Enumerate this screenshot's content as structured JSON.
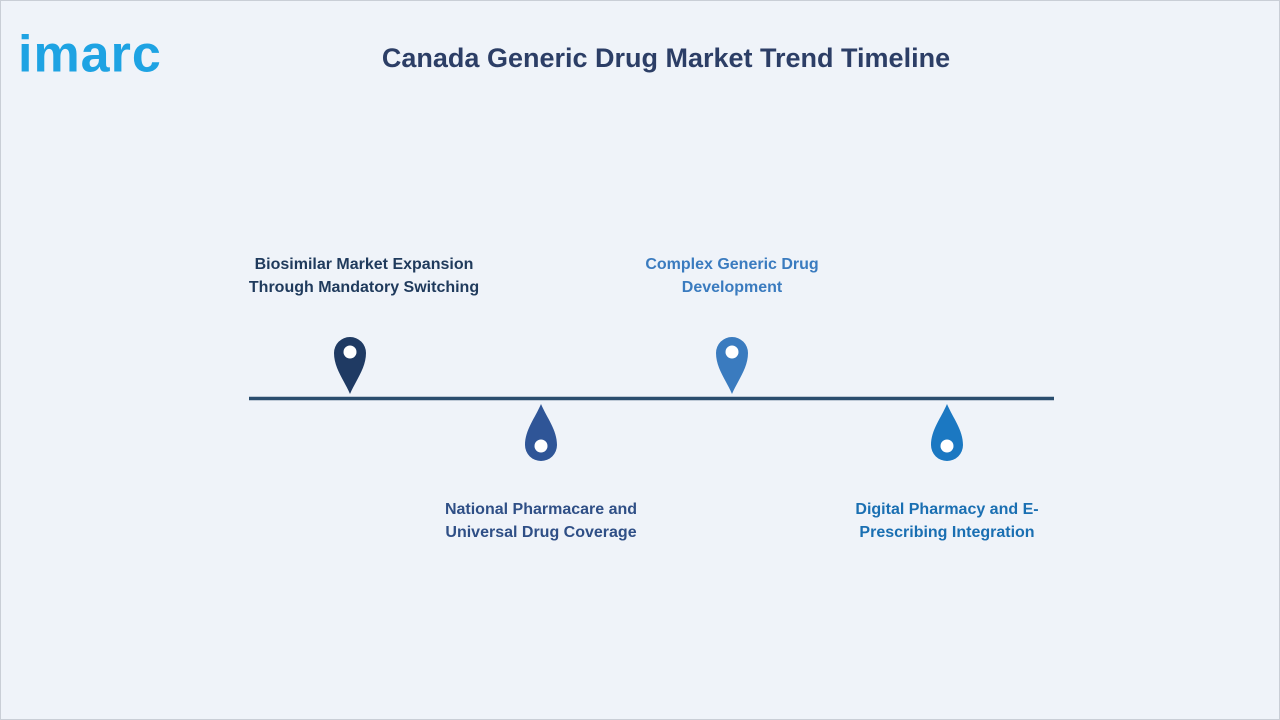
{
  "logo": "imarc",
  "title": "Canada Generic Drug Market Trend Timeline",
  "items": [
    {
      "lines": [
        "Biosimilar Market Expansion",
        "Through Mandatory Switching"
      ]
    },
    {
      "lines": [
        "National Pharmacare and",
        "Universal Drug Coverage"
      ]
    },
    {
      "lines": [
        "Complex Generic Drug",
        "Development"
      ]
    },
    {
      "lines": [
        "Digital Pharmacy and E-",
        "Prescribing Integration"
      ]
    }
  ]
}
